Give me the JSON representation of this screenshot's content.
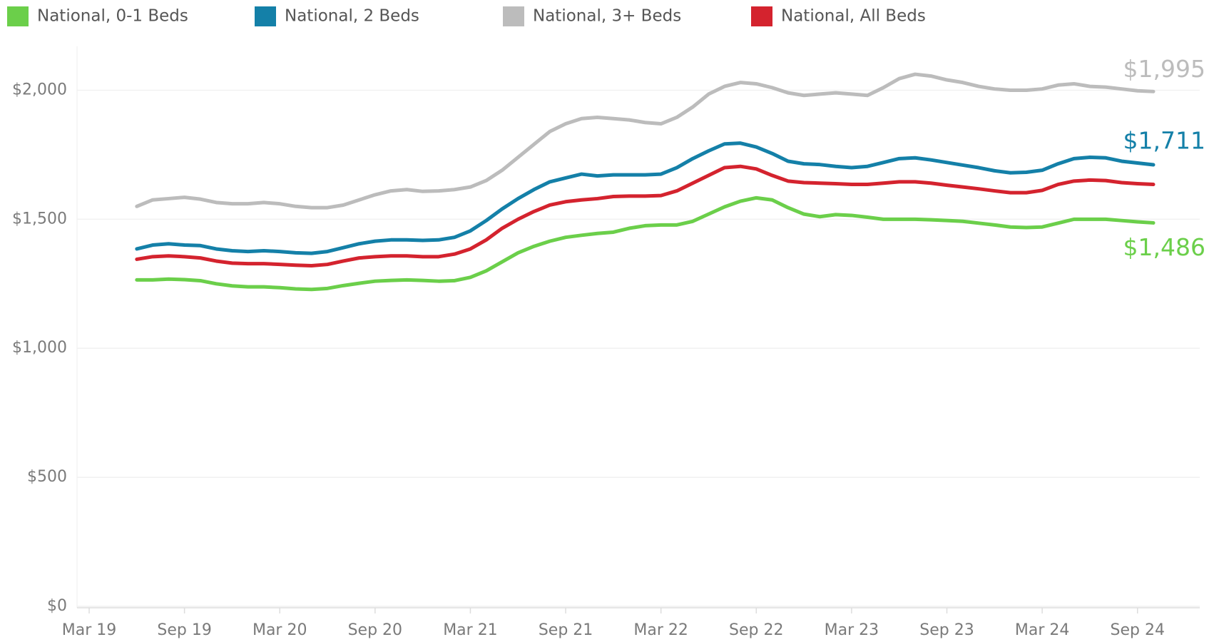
{
  "chart_data": {
    "type": "line",
    "categories": [
      "Mar 19",
      null,
      null,
      null,
      null,
      null,
      "Sep 19",
      null,
      null,
      null,
      null,
      null,
      "Mar 20",
      null,
      null,
      null,
      null,
      null,
      "Sep 20",
      null,
      null,
      null,
      null,
      null,
      "Mar 21",
      null,
      null,
      null,
      null,
      null,
      "Sep 21",
      null,
      null,
      null,
      null,
      null,
      "Mar 22",
      null,
      null,
      null,
      null,
      null,
      "Sep 22",
      null,
      null,
      null,
      null,
      null,
      "Mar 23",
      null,
      null,
      null,
      null,
      null,
      "Sep 23",
      null,
      null,
      null,
      null,
      null,
      "Mar 24",
      null,
      null,
      null,
      null,
      null,
      "Sep 24",
      null
    ],
    "series": [
      {
        "name": "National, 0-1 Beds",
        "color": "#6bcf4a",
        "values": [
          null,
          null,
          null,
          1265,
          1265,
          1268,
          1266,
          1262,
          1250,
          1242,
          1238,
          1238,
          1235,
          1230,
          1228,
          1232,
          1243,
          1252,
          1260,
          1263,
          1265,
          1263,
          1260,
          1262,
          1275,
          1300,
          1335,
          1370,
          1395,
          1415,
          1430,
          1438,
          1445,
          1450,
          1465,
          1475,
          1478,
          1478,
          1492,
          1520,
          1548,
          1570,
          1583,
          1575,
          1545,
          1520,
          1510,
          1518,
          1515,
          1508,
          1500,
          1500,
          1500,
          1498,
          1495,
          1492,
          1485,
          1478,
          1470,
          1468,
          1470,
          1485,
          1500,
          1500,
          1500,
          1495,
          1490,
          1486
        ],
        "value_labels": [
          null,
          null,
          null,
          null,
          null,
          null,
          null,
          null,
          null,
          null,
          null,
          null,
          null,
          null,
          null,
          null,
          null,
          null,
          null,
          null,
          null,
          null,
          null,
          null,
          null,
          null,
          null,
          null,
          null,
          null,
          null,
          null,
          null,
          null,
          null,
          null,
          null,
          null,
          null,
          null,
          null,
          null,
          null,
          null,
          null,
          null,
          null,
          null,
          null,
          null,
          null,
          null,
          null,
          null,
          null,
          null,
          null,
          null,
          null,
          null,
          null,
          null,
          null,
          null,
          null,
          null,
          null,
          "$1,486"
        ]
      },
      {
        "name": "National, 2 Beds",
        "color": "#1480a8",
        "values": [
          null,
          null,
          null,
          1385,
          1400,
          1405,
          1400,
          1398,
          1385,
          1378,
          1375,
          1378,
          1375,
          1370,
          1368,
          1375,
          1390,
          1405,
          1415,
          1420,
          1420,
          1418,
          1420,
          1430,
          1455,
          1495,
          1540,
          1580,
          1615,
          1645,
          1660,
          1675,
          1668,
          1672,
          1672,
          1672,
          1675,
          1700,
          1735,
          1765,
          1792,
          1795,
          1780,
          1755,
          1725,
          1715,
          1712,
          1705,
          1700,
          1705,
          1720,
          1735,
          1738,
          1730,
          1720,
          1710,
          1700,
          1688,
          1680,
          1682,
          1690,
          1715,
          1735,
          1740,
          1738,
          1725,
          1718,
          1711
        ],
        "value_labels": [
          null,
          null,
          null,
          null,
          null,
          null,
          null,
          null,
          null,
          null,
          null,
          null,
          null,
          null,
          null,
          null,
          null,
          null,
          null,
          null,
          null,
          null,
          null,
          null,
          null,
          null,
          null,
          null,
          null,
          null,
          null,
          null,
          null,
          null,
          null,
          null,
          null,
          null,
          null,
          null,
          null,
          null,
          null,
          null,
          null,
          null,
          null,
          null,
          null,
          null,
          null,
          null,
          null,
          null,
          null,
          null,
          null,
          null,
          null,
          null,
          null,
          null,
          null,
          null,
          null,
          null,
          null,
          "$1,711"
        ]
      },
      {
        "name": "National, 3+ Beds",
        "color": "#bcbcbc",
        "values": [
          null,
          null,
          null,
          1550,
          1575,
          1580,
          1585,
          1578,
          1565,
          1560,
          1560,
          1565,
          1560,
          1550,
          1545,
          1545,
          1555,
          1575,
          1595,
          1610,
          1615,
          1608,
          1610,
          1615,
          1625,
          1650,
          1690,
          1740,
          1790,
          1840,
          1870,
          1890,
          1895,
          1890,
          1885,
          1875,
          1870,
          1895,
          1935,
          1985,
          2015,
          2030,
          2025,
          2010,
          1990,
          1980,
          1985,
          1990,
          1985,
          1980,
          2010,
          2045,
          2062,
          2055,
          2040,
          2030,
          2015,
          2005,
          2000,
          2000,
          2005,
          2020,
          2025,
          2015,
          2012,
          2005,
          1998,
          1995
        ],
        "value_labels": [
          null,
          null,
          null,
          null,
          null,
          null,
          null,
          null,
          null,
          null,
          null,
          null,
          null,
          null,
          null,
          null,
          null,
          null,
          null,
          null,
          null,
          null,
          null,
          null,
          null,
          null,
          null,
          null,
          null,
          null,
          null,
          null,
          null,
          null,
          null,
          null,
          null,
          null,
          null,
          null,
          null,
          null,
          null,
          null,
          null,
          null,
          null,
          null,
          null,
          null,
          null,
          null,
          null,
          null,
          null,
          null,
          null,
          null,
          null,
          null,
          null,
          null,
          null,
          null,
          null,
          null,
          null,
          "$1,995"
        ]
      },
      {
        "name": "National, All Beds",
        "color": "#d4232e",
        "values": [
          null,
          null,
          null,
          1345,
          1355,
          1358,
          1355,
          1350,
          1338,
          1330,
          1328,
          1328,
          1325,
          1322,
          1320,
          1325,
          1338,
          1350,
          1355,
          1358,
          1358,
          1355,
          1355,
          1365,
          1385,
          1420,
          1465,
          1500,
          1530,
          1555,
          1568,
          1575,
          1580,
          1588,
          1590,
          1590,
          1592,
          1610,
          1640,
          1670,
          1700,
          1705,
          1695,
          1670,
          1648,
          1642,
          1640,
          1638,
          1635,
          1635,
          1640,
          1645,
          1645,
          1640,
          1632,
          1625,
          1618,
          1610,
          1603,
          1603,
          1612,
          1635,
          1648,
          1652,
          1650,
          1642,
          1638,
          1635
        ]
      }
    ],
    "ylim": [
      0,
      2170
    ],
    "yticks": [
      {
        "value": 0,
        "label": "$0"
      },
      {
        "value": 500,
        "label": "$500"
      },
      {
        "value": 1000,
        "label": "$1,000"
      },
      {
        "value": 1500,
        "label": "$1,500"
      },
      {
        "value": 2000,
        "label": "$2,000"
      }
    ],
    "grid": true,
    "legend": "top"
  }
}
